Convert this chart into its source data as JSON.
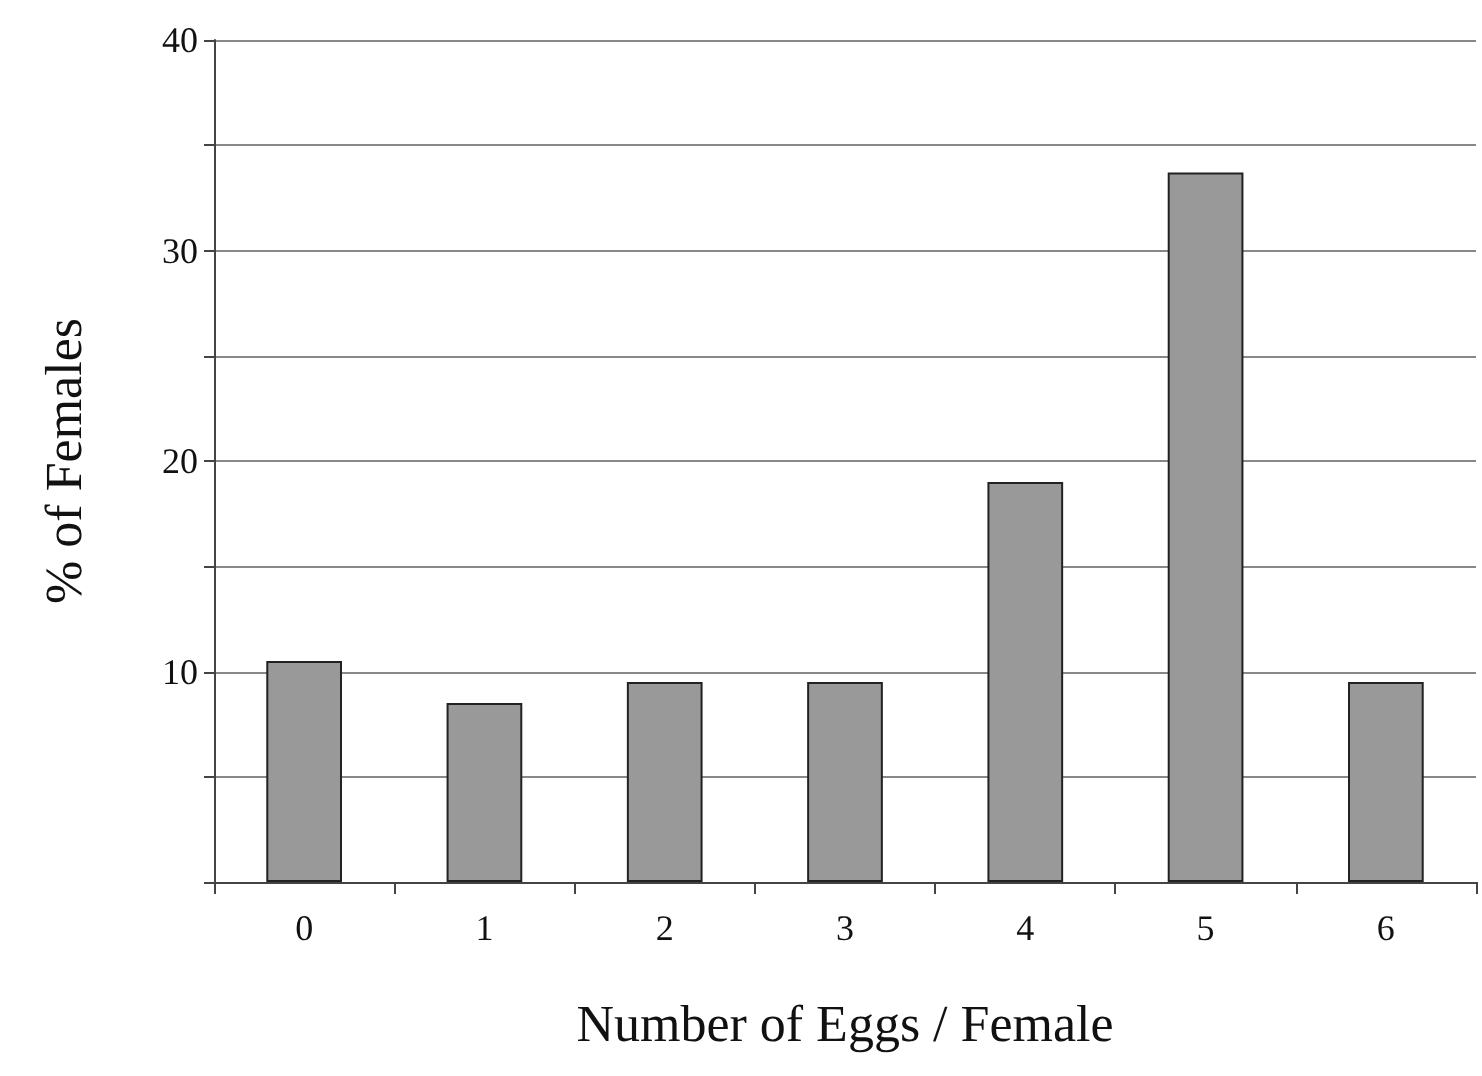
{
  "chart_data": {
    "type": "bar",
    "xlabel": "Number of Eggs / Female",
    "ylabel": "% of Females",
    "categories": [
      "0",
      "1",
      "2",
      "3",
      "4",
      "5",
      "6"
    ],
    "values": [
      10.5,
      8.5,
      9.5,
      9.5,
      19.0,
      33.7,
      9.5
    ],
    "color": "#999999",
    "ylim": [
      0,
      40
    ],
    "yticks": [
      {
        "value": 0,
        "label": null
      },
      {
        "value": 5,
        "label": null
      },
      10,
      {
        "value": 15,
        "label": null
      },
      20,
      {
        "value": 25,
        "label": null
      },
      30,
      {
        "value": 35,
        "label": null
      },
      40
    ],
    "grid": "y"
  }
}
